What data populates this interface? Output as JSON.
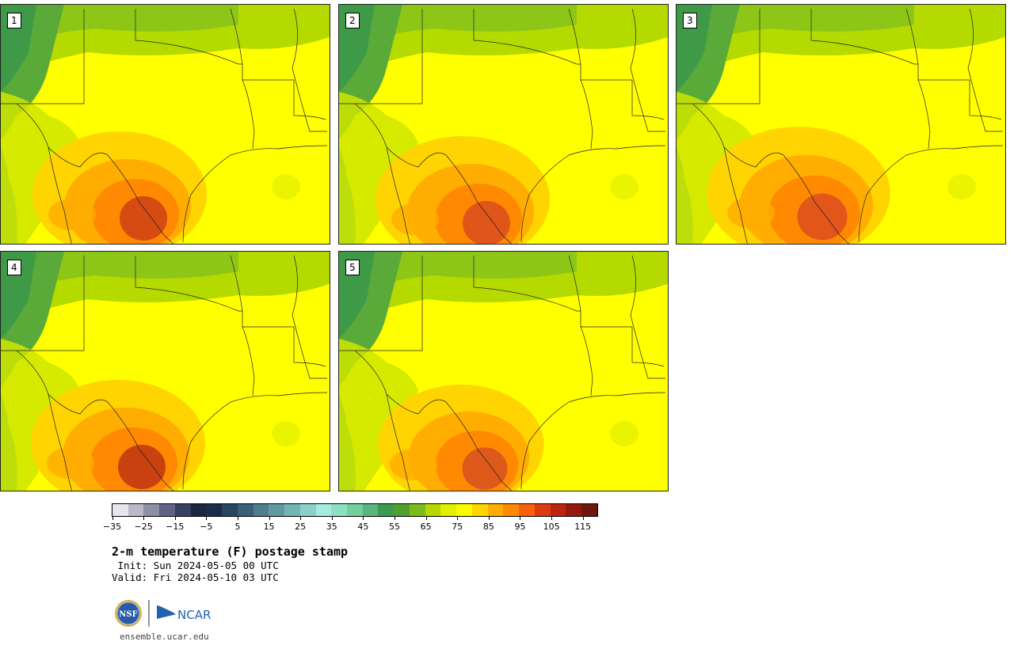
{
  "panels": [
    {
      "label": "1"
    },
    {
      "label": "2"
    },
    {
      "label": "3"
    },
    {
      "label": "4"
    },
    {
      "label": "5"
    }
  ],
  "colorbar": {
    "colors": [
      "#e6e6ee",
      "#b9bac9",
      "#8c8fa6",
      "#5e6384",
      "#37405f",
      "#1d2540",
      "#1b2b48",
      "#274660",
      "#3a6077",
      "#4f7d8d",
      "#5f9aa2",
      "#74b5b4",
      "#8ed0c8",
      "#a6ebe0",
      "#8ee0c2",
      "#72cf9e",
      "#58b67a",
      "#3d9a52",
      "#4fa12f",
      "#7dba1c",
      "#b4d800",
      "#e2ef00",
      "#fcfc00",
      "#ffd400",
      "#ffad00",
      "#ff8900",
      "#f8610e",
      "#de3a11",
      "#bc2410",
      "#94190f",
      "#6e1610"
    ],
    "ticks": [
      "−35",
      "−25",
      "−15",
      "−5",
      "5",
      "15",
      "25",
      "35",
      "45",
      "55",
      "65",
      "75",
      "85",
      "95",
      "105",
      "115"
    ]
  },
  "title": "2-m temperature (F) postage stamp",
  "init": " Init: Sun 2024-05-05 00 UTC",
  "valid": "Valid: Fri 2024-05-10 03 UTC",
  "logos": {
    "nsf": "NSF",
    "ncar": "NCAR"
  },
  "site": "ensemble.ucar.edu"
}
